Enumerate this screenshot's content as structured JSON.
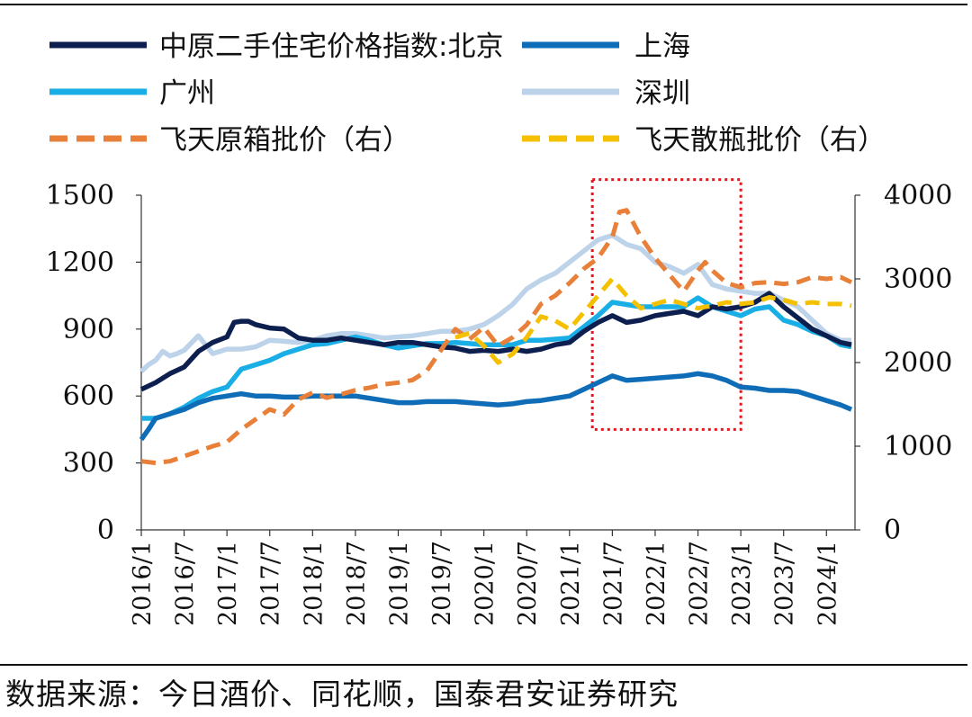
{
  "chart_data": {
    "type": "line",
    "title": "",
    "xlabel": "",
    "ylabel_left": "",
    "ylabel_right": "",
    "left_axis": {
      "ylim": [
        0,
        1500
      ],
      "ticks": [
        0,
        300,
        600,
        900,
        1200,
        1500
      ]
    },
    "right_axis": {
      "ylim": [
        0,
        4000
      ],
      "ticks": [
        0,
        1000,
        2000,
        3000,
        4000
      ]
    },
    "x_range": [
      0,
      100
    ],
    "x_ticks": [
      {
        "t": 0,
        "label": "2016/1"
      },
      {
        "t": 6,
        "label": "2016/7"
      },
      {
        "t": 12,
        "label": "2017/1"
      },
      {
        "t": 18,
        "label": "2017/7"
      },
      {
        "t": 24,
        "label": "2018/1"
      },
      {
        "t": 30,
        "label": "2018/7"
      },
      {
        "t": 36,
        "label": "2019/1"
      },
      {
        "t": 42,
        "label": "2019/7"
      },
      {
        "t": 48,
        "label": "2020/1"
      },
      {
        "t": 54,
        "label": "2020/7"
      },
      {
        "t": 60,
        "label": "2021/1"
      },
      {
        "t": 66,
        "label": "2021/7"
      },
      {
        "t": 72,
        "label": "2022/1"
      },
      {
        "t": 78,
        "label": "2022/7"
      },
      {
        "t": 84,
        "label": "2023/1"
      },
      {
        "t": 90,
        "label": "2023/7"
      },
      {
        "t": 96,
        "label": "2024/1"
      }
    ],
    "highlight": {
      "x_start": 63.2,
      "x_end": 84.0,
      "y_low": 450,
      "y_high": 1570,
      "color": "#e8141c"
    },
    "series": [
      {
        "name": "中原二手住宅价格指数:北京",
        "axis": "left",
        "color": "#0d1f4f",
        "dash": false,
        "x": [
          0,
          2,
          4,
          6,
          8,
          9,
          10,
          12,
          13,
          14,
          15,
          16,
          18,
          20,
          22,
          24,
          26,
          28,
          30,
          32,
          34,
          36,
          38,
          40,
          42,
          44,
          46,
          48,
          50,
          52,
          54,
          56,
          58,
          60,
          62,
          64,
          66,
          68,
          70,
          72,
          74,
          76,
          78,
          80,
          82,
          84,
          86,
          88,
          90,
          92,
          94,
          96,
          98,
          99.5
        ],
        "y": [
          630,
          660,
          700,
          730,
          800,
          820,
          840,
          865,
          930,
          935,
          935,
          920,
          905,
          900,
          860,
          850,
          850,
          860,
          850,
          840,
          830,
          840,
          840,
          830,
          820,
          815,
          800,
          805,
          800,
          810,
          800,
          810,
          830,
          840,
          890,
          930,
          960,
          930,
          940,
          960,
          970,
          980,
          960,
          1000,
          990,
          1000,
          1020,
          1060,
          1000,
          950,
          900,
          870,
          840,
          830
        ]
      },
      {
        "name": "上海",
        "axis": "left",
        "color": "#0f6db8",
        "dash": false,
        "x": [
          0,
          1,
          2,
          4,
          6,
          8,
          10,
          12,
          14,
          16,
          18,
          20,
          22,
          24,
          26,
          28,
          30,
          32,
          34,
          36,
          38,
          40,
          42,
          44,
          46,
          48,
          50,
          52,
          54,
          56,
          58,
          60,
          62,
          64,
          66,
          68,
          70,
          72,
          74,
          76,
          78,
          80,
          82,
          84,
          86,
          88,
          90,
          92,
          94,
          96,
          98,
          99.5
        ],
        "y": [
          405,
          450,
          500,
          520,
          540,
          570,
          590,
          600,
          610,
          600,
          600,
          595,
          595,
          600,
          600,
          600,
          600,
          590,
          580,
          570,
          570,
          575,
          575,
          575,
          570,
          565,
          560,
          565,
          575,
          580,
          590,
          600,
          630,
          660,
          690,
          670,
          675,
          680,
          685,
          690,
          700,
          690,
          670,
          640,
          635,
          625,
          625,
          620,
          600,
          580,
          560,
          540
        ]
      },
      {
        "name": "广州",
        "axis": "left",
        "color": "#1aaee6",
        "dash": false,
        "x": [
          0,
          2,
          4,
          6,
          8,
          10,
          12,
          14,
          16,
          18,
          20,
          22,
          24,
          26,
          28,
          30,
          32,
          34,
          36,
          38,
          40,
          42,
          44,
          46,
          48,
          50,
          52,
          54,
          56,
          58,
          60,
          62,
          64,
          66,
          68,
          70,
          72,
          74,
          76,
          78,
          80,
          82,
          84,
          86,
          88,
          90,
          92,
          94,
          96,
          98,
          99.5
        ],
        "y": [
          500,
          500,
          520,
          550,
          590,
          620,
          640,
          720,
          740,
          760,
          790,
          810,
          830,
          835,
          850,
          865,
          850,
          830,
          815,
          825,
          835,
          835,
          840,
          835,
          830,
          830,
          830,
          850,
          850,
          855,
          860,
          910,
          960,
          1020,
          1010,
          1000,
          1000,
          1000,
          1000,
          1040,
          1000,
          980,
          960,
          990,
          1000,
          940,
          920,
          890,
          870,
          830,
          820
        ]
      },
      {
        "name": "深圳",
        "axis": "left",
        "color": "#bdd3ea",
        "dash": false,
        "x": [
          0,
          1,
          2,
          3,
          4,
          5,
          6,
          8,
          10,
          12,
          14,
          16,
          18,
          20,
          22,
          24,
          26,
          28,
          30,
          32,
          34,
          36,
          38,
          40,
          42,
          44,
          46,
          48,
          50,
          52,
          54,
          56,
          58,
          60,
          62,
          64,
          66,
          68,
          70,
          72,
          74,
          76,
          78,
          80,
          82,
          84,
          86,
          88,
          90,
          92,
          94,
          96,
          98,
          99.5
        ],
        "y": [
          710,
          740,
          760,
          800,
          780,
          790,
          805,
          870,
          790,
          810,
          810,
          820,
          850,
          845,
          840,
          850,
          870,
          880,
          880,
          870,
          860,
          865,
          870,
          880,
          890,
          890,
          900,
          920,
          960,
          1010,
          1080,
          1120,
          1150,
          1200,
          1250,
          1300,
          1320,
          1280,
          1260,
          1200,
          1180,
          1150,
          1190,
          1100,
          1080,
          1070,
          1060,
          1060,
          1030,
          1000,
          940,
          880,
          850,
          850
        ]
      },
      {
        "name": "飞天原箱批价（右）",
        "axis": "right",
        "color": "#e8803a",
        "dash": true,
        "x": [
          0,
          2,
          4,
          6,
          8,
          10,
          12,
          14,
          16,
          18,
          20,
          22,
          24,
          26,
          28,
          30,
          32,
          34,
          36,
          38,
          40,
          42,
          44,
          46,
          48,
          50,
          52,
          54,
          56,
          58,
          60,
          62,
          64,
          66,
          67,
          68,
          70,
          72,
          74,
          76,
          78,
          79,
          80,
          82,
          84,
          86,
          88,
          90,
          92,
          94,
          96,
          98,
          99.5
        ],
        "y": [
          820,
          800,
          820,
          880,
          940,
          1000,
          1050,
          1200,
          1320,
          1440,
          1380,
          1560,
          1640,
          1580,
          1620,
          1670,
          1700,
          1740,
          1760,
          1790,
          1900,
          2150,
          2400,
          2280,
          2420,
          2200,
          2300,
          2450,
          2700,
          2800,
          2950,
          3120,
          3250,
          3500,
          3800,
          3820,
          3500,
          3250,
          3050,
          2850,
          3100,
          3200,
          3100,
          2950,
          2900,
          2950,
          2960,
          2940,
          2960,
          3020,
          3000,
          3020,
          2960
        ]
      },
      {
        "name": "飞天散瓶批价（右）",
        "axis": "right",
        "color": "#f5c000",
        "dash": true,
        "x": [
          44,
          46,
          48,
          50,
          52,
          54,
          56,
          58,
          60,
          62,
          64,
          66,
          68,
          70,
          72,
          74,
          76,
          78,
          80,
          82,
          84,
          86,
          88,
          90,
          92,
          94,
          96,
          98,
          99.5
        ],
        "y": [
          2300,
          2350,
          2200,
          2000,
          2100,
          2300,
          2550,
          2500,
          2400,
          2600,
          2800,
          3000,
          2800,
          2650,
          2700,
          2750,
          2700,
          2650,
          2680,
          2720,
          2700,
          2720,
          2780,
          2750,
          2700,
          2720,
          2700,
          2700,
          2680
        ]
      }
    ]
  },
  "source_text": "数据来源：今日酒价、同花顺，国泰君安证券研究"
}
